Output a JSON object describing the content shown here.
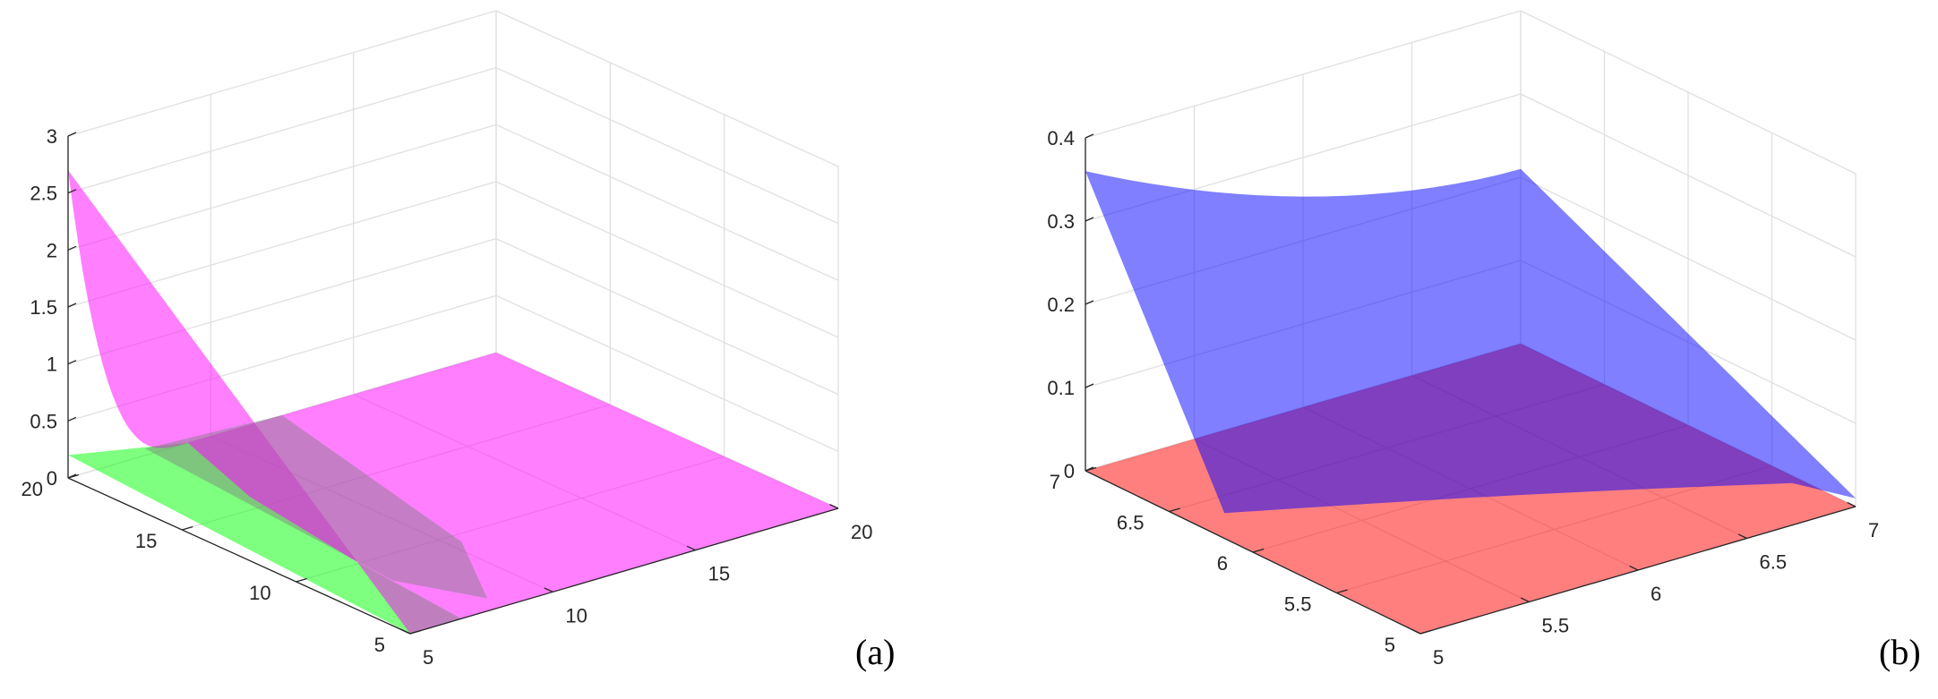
{
  "chart_data": [
    {
      "type": "surface",
      "panel_label": "(a)",
      "x_ticks": [
        "5",
        "10",
        "15",
        "20"
      ],
      "y_ticks": [
        "5",
        "10",
        "15",
        "20"
      ],
      "z_ticks": [
        "0",
        "0.5",
        "1",
        "1.5",
        "2",
        "2.5",
        "3"
      ],
      "xlim": [
        5,
        20
      ],
      "ylim": [
        5,
        20
      ],
      "zlim": [
        0,
        3
      ],
      "grid": true,
      "series": [
        {
          "color": "#ff00ff",
          "opacity": 0.5,
          "shape": "curved surface, near 2.7 at the high end of the left axis and low end of the right axis, flat at 0 elsewhere",
          "profile_x": [
            5,
            7.5,
            10,
            12,
            15,
            20
          ],
          "profile_z": [
            2.7,
            0.9,
            0.25,
            0,
            0,
            0
          ]
        },
        {
          "color": "#00ff00",
          "opacity": 0.5,
          "shape": "low sheet, 0.2 at left axis value 20 decreasing to 0",
          "profile_x": [
            5,
            7.5,
            10,
            20
          ],
          "profile_z": [
            0.2,
            0.08,
            0,
            0
          ]
        }
      ]
    },
    {
      "type": "surface",
      "panel_label": "(b)",
      "x_ticks": [
        "5",
        "5.5",
        "6",
        "6.5",
        "7"
      ],
      "y_ticks": [
        "5",
        "5.5",
        "6",
        "6.5",
        "7"
      ],
      "z_ticks": [
        "0",
        "0.1",
        "0.2",
        "0.3",
        "0.4"
      ],
      "xlim": [
        5,
        7
      ],
      "ylim": [
        5,
        7
      ],
      "zlim": [
        0,
        0.4
      ],
      "grid": true,
      "series": [
        {
          "color": "#0000ff",
          "opacity": 0.5,
          "shape": "curved surface, 0.36 at left axis value 7, near 0 along the front edge, rising toward the far corner",
          "corners": {
            "x5_y7": 0.36,
            "x7_y7": 0.21,
            "x5_y5": 0.01,
            "x7_y5": 0.01
          }
        },
        {
          "color": "#ff0000",
          "opacity": 0.5,
          "shape": "flat plane at 0",
          "corners": {
            "x5_y7": 0,
            "x7_y7": 0,
            "x5_y5": 0,
            "x7_y5": 0
          }
        }
      ]
    }
  ]
}
